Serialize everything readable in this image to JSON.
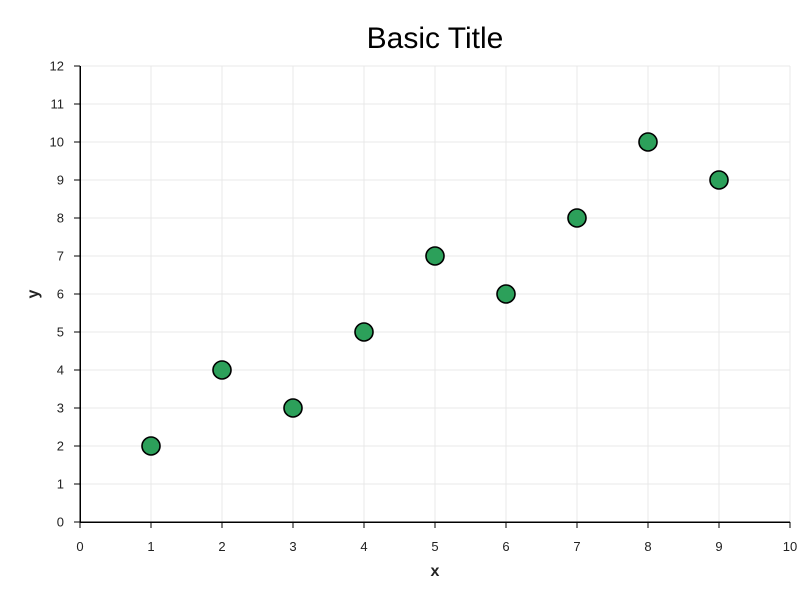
{
  "chart_data": {
    "type": "scatter",
    "title": "Basic Title",
    "xlabel": "x",
    "ylabel": "y",
    "xlim": [
      0,
      10
    ],
    "ylim": [
      0,
      12
    ],
    "xticks": [
      0,
      1,
      2,
      3,
      4,
      5,
      6,
      7,
      8,
      9,
      10
    ],
    "yticks": [
      0,
      1,
      2,
      3,
      4,
      5,
      6,
      7,
      8,
      9,
      10,
      11,
      12
    ],
    "grid": true,
    "legend": "none",
    "series": [
      {
        "color": "#2ca05a",
        "points": [
          {
            "x": 1,
            "y": 2
          },
          {
            "x": 2,
            "y": 4
          },
          {
            "x": 3,
            "y": 3
          },
          {
            "x": 4,
            "y": 5
          },
          {
            "x": 5,
            "y": 7
          },
          {
            "x": 6,
            "y": 6
          },
          {
            "x": 7,
            "y": 8
          },
          {
            "x": 8,
            "y": 10
          },
          {
            "x": 9,
            "y": 9
          }
        ]
      }
    ]
  }
}
